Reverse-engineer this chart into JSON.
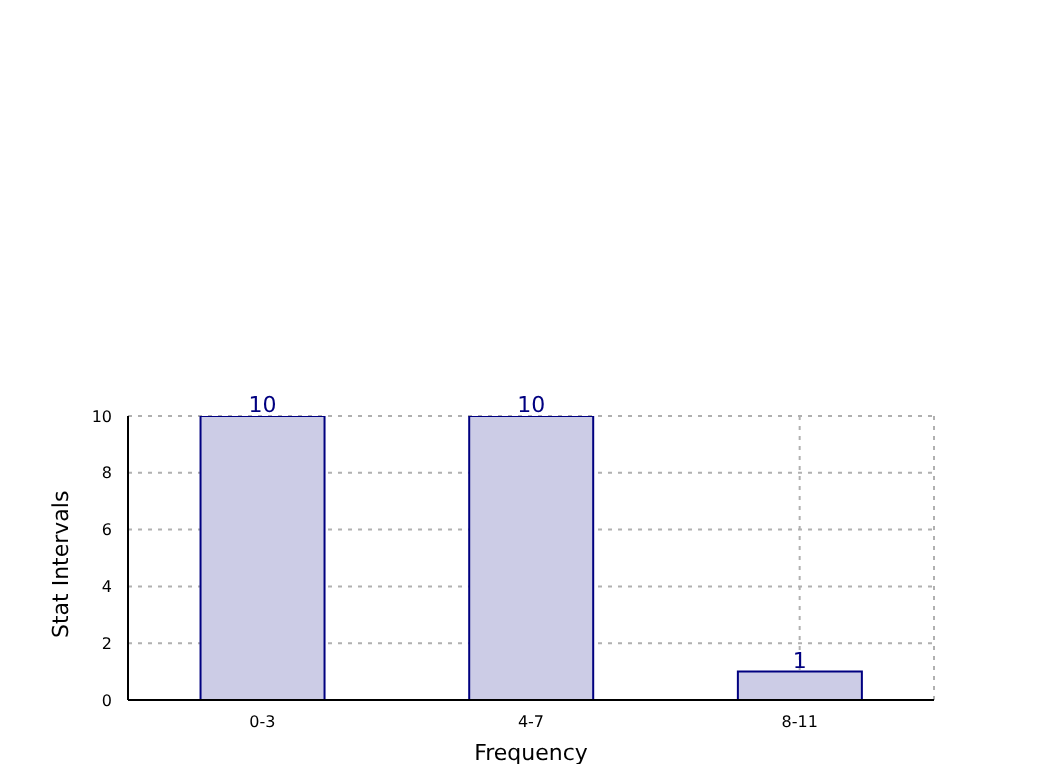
{
  "chart_data": {
    "type": "bar",
    "xlabel": "Frequency",
    "ylabel": "Stat Intervals",
    "categories": [
      "0-3",
      "4-7",
      "8-11"
    ],
    "values": [
      10,
      10,
      1
    ],
    "color": "#ccccE6",
    "ylim": [
      0,
      10
    ],
    "yticks": [
      0,
      2,
      4,
      6,
      8,
      10
    ],
    "grid": true,
    "data_labels": true
  }
}
